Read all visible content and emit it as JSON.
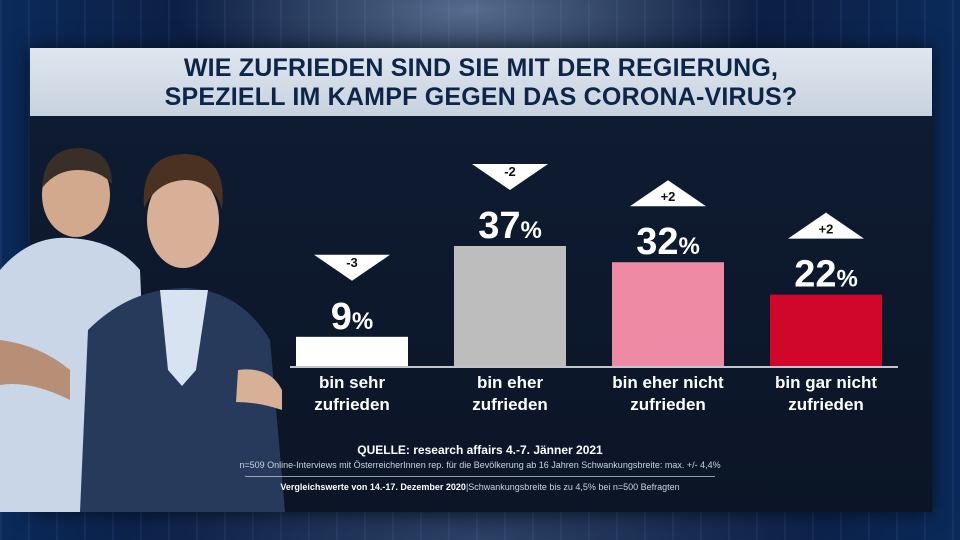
{
  "title_line1": "WIE ZUFRIEDEN SIND SIE MIT DER REGIERUNG,",
  "title_line2": "SPEZIELL IM KAMPF GEGEN DAS CORONA-VIRUS?",
  "source": "QUELLE: research affairs 4.-7. Jänner 2021",
  "note": "n=509 Online-Interviews mit ÖsterreicherInnen rep. für die Bevölkerung ab 16 Jahren  Schwankungsbreite: max. +/- 4,4%",
  "comparison_bold": "Vergleichswerte von 14.-17. Dezember 2020",
  "comparison_rest": "|Schwankungsbreite bis zu 4,5% bei n=500 Befragten",
  "chart_data": {
    "type": "bar",
    "categories": [
      "bin sehr zufrieden",
      "bin eher zufrieden",
      "bin eher nicht zufrieden",
      "bin gar nicht zufrieden"
    ],
    "label_lines": [
      [
        "bin sehr",
        "zufrieden"
      ],
      [
        "bin eher",
        "zufrieden"
      ],
      [
        "bin eher nicht",
        "zufrieden"
      ],
      [
        "bin gar nicht",
        "zufrieden"
      ]
    ],
    "values": [
      9,
      37,
      32,
      22
    ],
    "value_labels": [
      "9",
      "37",
      "32",
      "22"
    ],
    "unit": "%",
    "changes": [
      "-3",
      "-2",
      "+2",
      "+2"
    ],
    "change_direction": [
      "down",
      "down",
      "up",
      "up"
    ],
    "colors": [
      "#ffffff",
      "#bdbdbd",
      "#ee8aa4",
      "#d0062a"
    ],
    "ylim": [
      0,
      37
    ]
  }
}
